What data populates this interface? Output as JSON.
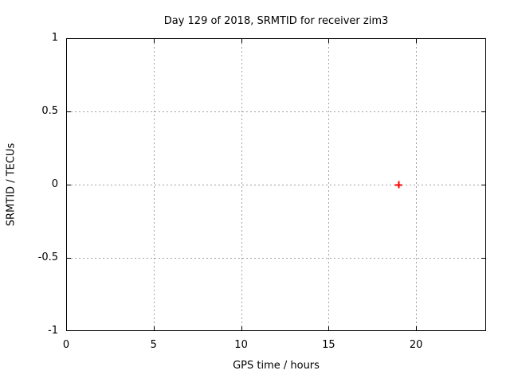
{
  "chart_data": {
    "type": "scatter",
    "title": "Day 129 of 2018, SRMTID for receiver zim3",
    "xlabel": "GPS time / hours",
    "ylabel": "SRMTID / TECUs",
    "xlim": [
      0,
      24
    ],
    "ylim": [
      -1,
      1
    ],
    "xticks": [
      0,
      5,
      10,
      15,
      20
    ],
    "yticks": [
      -1,
      -0.5,
      0,
      0.5,
      1
    ],
    "grid": true,
    "legend": "none",
    "series": [
      {
        "name": "SRMTID",
        "marker": "plus",
        "color": "#ff0000",
        "points": [
          {
            "x": 19,
            "y": 0
          }
        ]
      }
    ]
  },
  "colors": {
    "background": "#ffffff",
    "border": "#000000",
    "grid": "#a0a0a0",
    "text": "#000000",
    "marker": "#ff0000"
  }
}
